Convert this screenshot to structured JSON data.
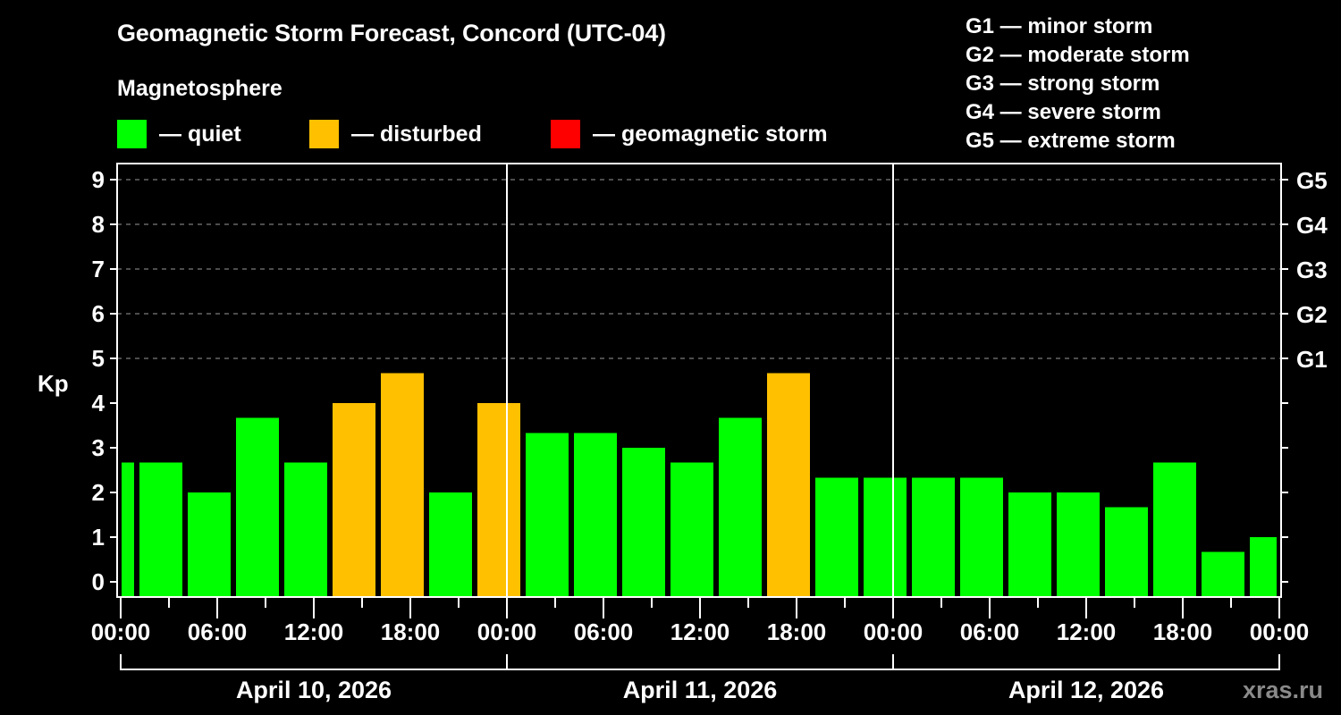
{
  "header": {
    "title": "Geomagnetic Storm Forecast, Concord (UTC-04)",
    "subtitle": "Magnetosphere"
  },
  "legend": [
    {
      "label": "— quiet",
      "color": "#00ff00"
    },
    {
      "label": "— disturbed",
      "color": "#ffc000"
    },
    {
      "label": "— geomagnetic storm",
      "color": "#ff0000"
    }
  ],
  "storm_scale": [
    "G1 — minor storm",
    "G2 — moderate storm",
    "G3 — strong storm",
    "G4 — severe storm",
    "G5 — extreme storm"
  ],
  "watermark": "xras.ru",
  "chart_data": {
    "type": "bar",
    "title": "Geomagnetic Storm Forecast, Concord (UTC-04)",
    "xlabel": "",
    "ylabel": "Kp",
    "ylim": [
      0,
      9
    ],
    "y_ticks": [
      0,
      1,
      2,
      3,
      4,
      5,
      6,
      7,
      8,
      9
    ],
    "y2_ticks": [
      {
        "kp": 5,
        "label": "G1"
      },
      {
        "kp": 6,
        "label": "G2"
      },
      {
        "kp": 7,
        "label": "G3"
      },
      {
        "kp": 8,
        "label": "G4"
      },
      {
        "kp": 9,
        "label": "G5"
      }
    ],
    "grid": "dashed horizontal at Kp 5-9",
    "x_tick_labels": [
      "00:00",
      "06:00",
      "12:00",
      "18:00",
      "00:00",
      "06:00",
      "12:00",
      "18:00",
      "00:00",
      "06:00",
      "12:00",
      "18:00",
      "00:00"
    ],
    "days": [
      "April 10, 2026",
      "April 11, 2026",
      "April 12, 2026"
    ],
    "bar_slot_hours": 3,
    "first_slot_start_hour": -2,
    "categories": [
      "Apr10 -02:00",
      "Apr10 01:00",
      "Apr10 04:00",
      "Apr10 07:00",
      "Apr10 10:00",
      "Apr10 13:00",
      "Apr10 16:00",
      "Apr10 19:00",
      "Apr10 22:00",
      "Apr11 01:00",
      "Apr11 04:00",
      "Apr11 07:00",
      "Apr11 10:00",
      "Apr11 13:00",
      "Apr11 16:00",
      "Apr11 19:00",
      "Apr11 22:00",
      "Apr12 01:00",
      "Apr12 04:00",
      "Apr12 07:00",
      "Apr12 10:00",
      "Apr12 13:00",
      "Apr12 16:00",
      "Apr12 19:00",
      "Apr12 22:00"
    ],
    "values": [
      2.67,
      2.67,
      2.0,
      3.67,
      2.67,
      4.0,
      4.67,
      2.0,
      4.0,
      3.33,
      3.33,
      3.0,
      2.67,
      3.67,
      4.67,
      2.33,
      2.33,
      2.33,
      2.33,
      2.0,
      2.0,
      1.67,
      2.67,
      0.67,
      1.0
    ],
    "status": [
      "quiet",
      "quiet",
      "quiet",
      "quiet",
      "quiet",
      "disturbed",
      "disturbed",
      "quiet",
      "disturbed",
      "quiet",
      "quiet",
      "quiet",
      "quiet",
      "quiet",
      "disturbed",
      "quiet",
      "quiet",
      "quiet",
      "quiet",
      "quiet",
      "quiet",
      "quiet",
      "quiet",
      "quiet",
      "quiet"
    ],
    "colors": {
      "quiet": "#00ff00",
      "disturbed": "#ffc000",
      "storm": "#ff0000"
    }
  }
}
